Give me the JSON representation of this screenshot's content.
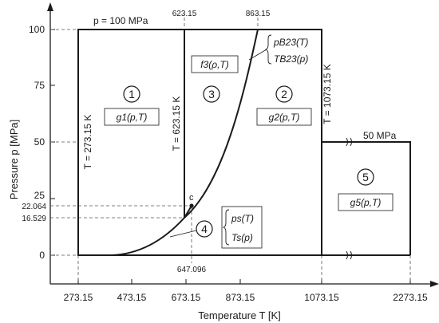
{
  "axes": {
    "ylabel": "Pressure p [MPa]",
    "xlabel": "Temperature T [K]",
    "y_ticks": [
      "0",
      "25",
      "50",
      "75",
      "100"
    ],
    "y_aux_ticks": [
      "22.064",
      "16.529"
    ],
    "x_ticks": [
      "273.15",
      "473.15",
      "673.15",
      "873.15",
      "1073.15",
      "2273.15"
    ]
  },
  "top_labels": {
    "pressure": "p = 100 MPa",
    "t_623": "623.15",
    "t_863": "863.15"
  },
  "boundaries": {
    "left": "T = 273.15 K",
    "mid": "T = 623.15 K",
    "right": "T = 1073.15 K",
    "region5_top": "50 MPa",
    "critical_t": "647.096",
    "critical_point": "c"
  },
  "regions": [
    {
      "number": "1",
      "function": "g1(p,T)"
    },
    {
      "number": "2",
      "function": "g2(p,T)"
    },
    {
      "number": "3",
      "function": "f3(ρ,T)"
    },
    {
      "number": "4",
      "function_a": "ps(T)",
      "function_b": "Ts(p)"
    },
    {
      "number": "5",
      "function": "g5(p,T)"
    }
  ],
  "b23": {
    "function_a": "pB23(T)",
    "function_b": "TB23(p)"
  }
}
